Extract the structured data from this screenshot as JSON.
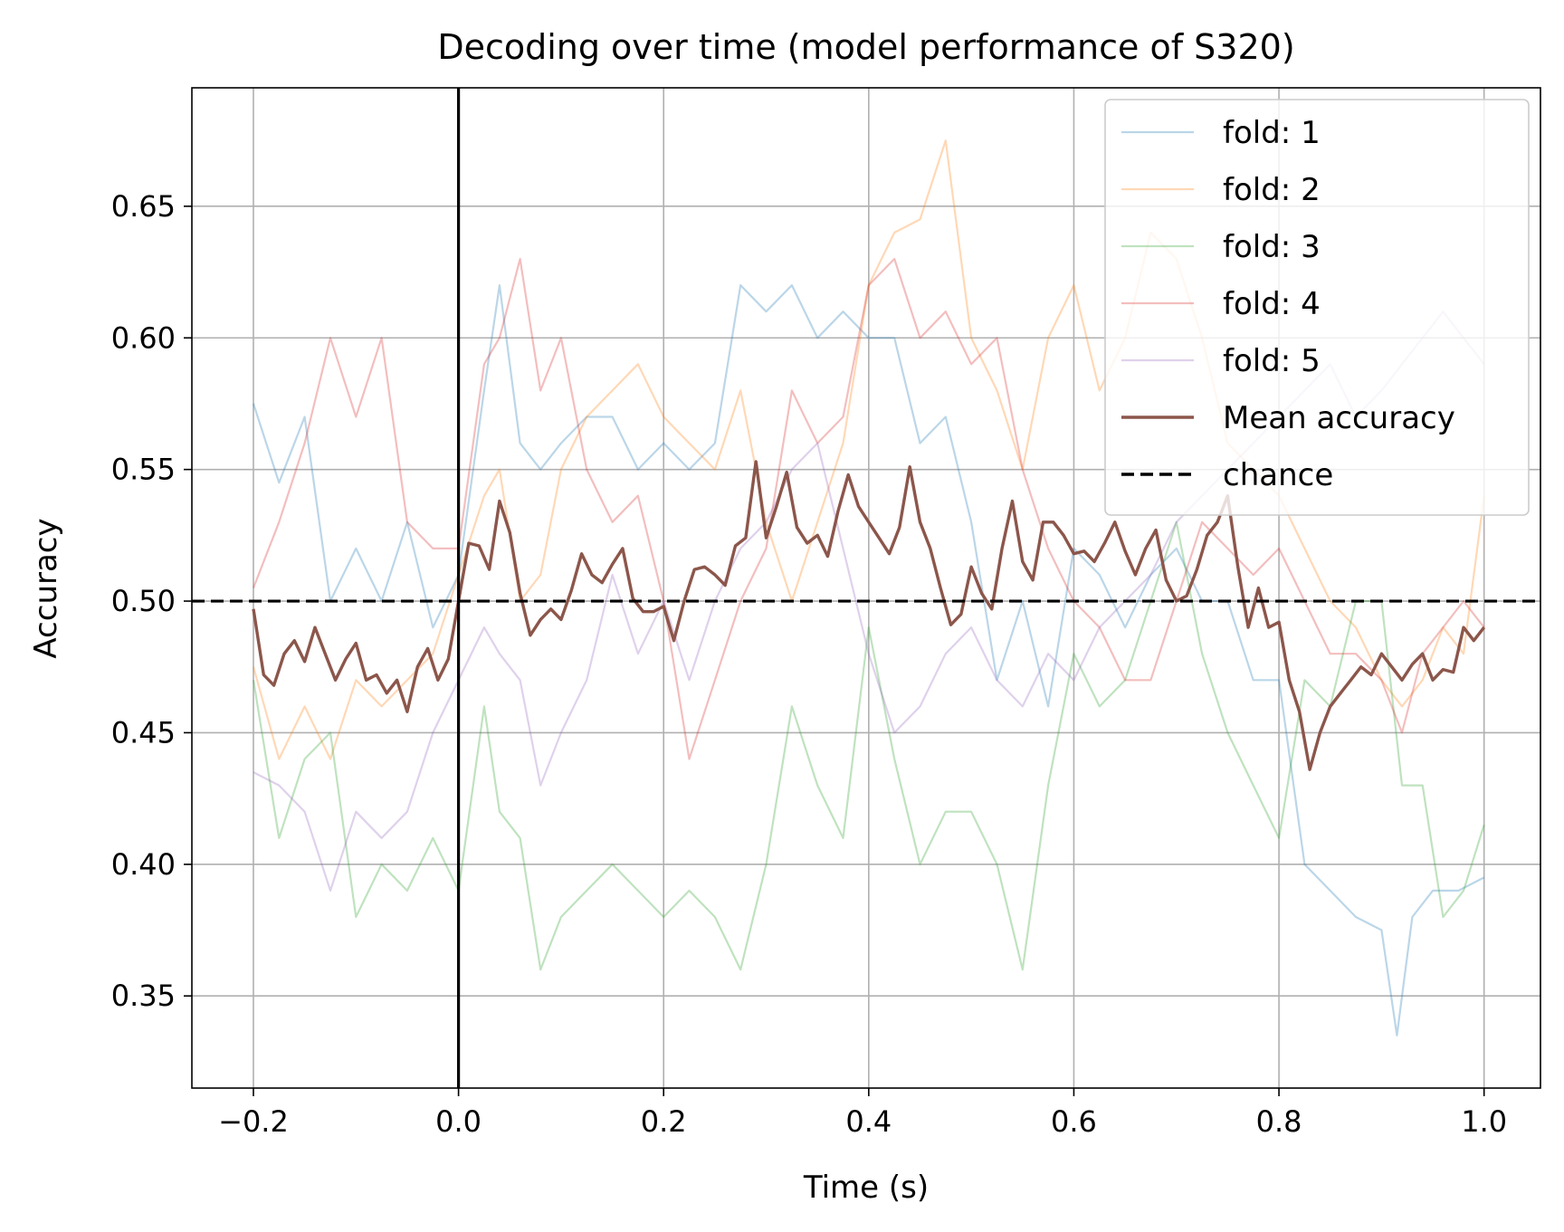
{
  "chart_data": {
    "type": "line",
    "title": "Decoding over time (model performance of S320)",
    "xlabel": "Time (s)",
    "ylabel": "Accuracy",
    "xlim": [
      -0.26,
      1.055
    ],
    "ylim": [
      0.315,
      0.695
    ],
    "xticks": [
      -0.2,
      0.0,
      0.2,
      0.4,
      0.6,
      0.8,
      1.0
    ],
    "xtick_labels": [
      "−0.2",
      "0.0",
      "0.2",
      "0.4",
      "0.6",
      "0.8",
      "1.0"
    ],
    "yticks": [
      0.35,
      0.4,
      0.45,
      0.5,
      0.55,
      0.6,
      0.65
    ],
    "ytick_labels": [
      "0.35",
      "0.40",
      "0.45",
      "0.50",
      "0.55",
      "0.60",
      "0.65"
    ],
    "grid": true,
    "legend_position": "top-right",
    "onset_line_x": 0.0,
    "chance_level": 0.5,
    "chance_label": "chance",
    "series": [
      {
        "name": "fold: 1",
        "color": "#1f77b4",
        "alpha": 0.3,
        "x": [
          -0.2,
          -0.175,
          -0.15,
          -0.125,
          -0.1,
          -0.075,
          -0.05,
          -0.025,
          0.0,
          0.025,
          0.04,
          0.06,
          0.08,
          0.1,
          0.125,
          0.15,
          0.175,
          0.2,
          0.225,
          0.25,
          0.275,
          0.3,
          0.325,
          0.35,
          0.375,
          0.4,
          0.425,
          0.45,
          0.475,
          0.5,
          0.525,
          0.55,
          0.575,
          0.6,
          0.625,
          0.65,
          0.675,
          0.7,
          0.725,
          0.75,
          0.775,
          0.8,
          0.825,
          0.85,
          0.875,
          0.9,
          0.915,
          0.93,
          0.95,
          0.975,
          1.0
        ],
        "y": [
          0.575,
          0.545,
          0.57,
          0.5,
          0.52,
          0.5,
          0.53,
          0.49,
          0.51,
          0.58,
          0.62,
          0.56,
          0.55,
          0.56,
          0.57,
          0.57,
          0.55,
          0.56,
          0.55,
          0.56,
          0.62,
          0.61,
          0.62,
          0.6,
          0.61,
          0.6,
          0.6,
          0.56,
          0.57,
          0.53,
          0.47,
          0.5,
          0.46,
          0.52,
          0.51,
          0.49,
          0.51,
          0.52,
          0.5,
          0.5,
          0.47,
          0.47,
          0.4,
          0.39,
          0.38,
          0.375,
          0.335,
          0.38,
          0.39,
          0.39,
          0.395
        ]
      },
      {
        "name": "fold: 2",
        "color": "#ff7f0e",
        "alpha": 0.3,
        "x": [
          -0.2,
          -0.175,
          -0.15,
          -0.125,
          -0.1,
          -0.075,
          -0.05,
          -0.025,
          0.0,
          0.025,
          0.04,
          0.06,
          0.08,
          0.1,
          0.125,
          0.15,
          0.175,
          0.2,
          0.225,
          0.25,
          0.275,
          0.3,
          0.325,
          0.35,
          0.375,
          0.4,
          0.425,
          0.45,
          0.475,
          0.5,
          0.525,
          0.55,
          0.575,
          0.6,
          0.625,
          0.65,
          0.675,
          0.7,
          0.725,
          0.75,
          0.775,
          0.8,
          0.825,
          0.85,
          0.875,
          0.9,
          0.92,
          0.94,
          0.96,
          0.98,
          1.0
        ],
        "y": [
          0.475,
          0.44,
          0.46,
          0.44,
          0.47,
          0.46,
          0.47,
          0.48,
          0.51,
          0.54,
          0.55,
          0.5,
          0.51,
          0.55,
          0.57,
          0.58,
          0.59,
          0.57,
          0.56,
          0.55,
          0.58,
          0.53,
          0.5,
          0.53,
          0.56,
          0.62,
          0.64,
          0.645,
          0.675,
          0.6,
          0.58,
          0.55,
          0.6,
          0.62,
          0.58,
          0.6,
          0.64,
          0.63,
          0.6,
          0.56,
          0.55,
          0.54,
          0.52,
          0.5,
          0.49,
          0.47,
          0.46,
          0.47,
          0.49,
          0.48,
          0.54
        ]
      },
      {
        "name": "fold: 3",
        "color": "#2ca02c",
        "alpha": 0.3,
        "x": [
          -0.2,
          -0.175,
          -0.15,
          -0.125,
          -0.1,
          -0.075,
          -0.05,
          -0.025,
          0.0,
          0.025,
          0.04,
          0.06,
          0.08,
          0.1,
          0.125,
          0.15,
          0.175,
          0.2,
          0.225,
          0.25,
          0.275,
          0.3,
          0.325,
          0.35,
          0.375,
          0.4,
          0.425,
          0.45,
          0.475,
          0.5,
          0.525,
          0.55,
          0.575,
          0.6,
          0.625,
          0.65,
          0.675,
          0.7,
          0.725,
          0.75,
          0.775,
          0.8,
          0.825,
          0.85,
          0.875,
          0.9,
          0.92,
          0.94,
          0.96,
          0.98,
          1.0
        ],
        "y": [
          0.47,
          0.41,
          0.44,
          0.45,
          0.38,
          0.4,
          0.39,
          0.41,
          0.39,
          0.46,
          0.42,
          0.41,
          0.36,
          0.38,
          0.39,
          0.4,
          0.39,
          0.38,
          0.39,
          0.38,
          0.36,
          0.4,
          0.46,
          0.43,
          0.41,
          0.49,
          0.44,
          0.4,
          0.42,
          0.42,
          0.4,
          0.36,
          0.43,
          0.48,
          0.46,
          0.47,
          0.5,
          0.53,
          0.48,
          0.45,
          0.43,
          0.41,
          0.47,
          0.46,
          0.5,
          0.5,
          0.43,
          0.43,
          0.38,
          0.39,
          0.415
        ]
      },
      {
        "name": "fold: 4",
        "color": "#d62728",
        "alpha": 0.3,
        "x": [
          -0.2,
          -0.175,
          -0.15,
          -0.125,
          -0.1,
          -0.075,
          -0.05,
          -0.025,
          0.0,
          0.025,
          0.04,
          0.06,
          0.08,
          0.1,
          0.125,
          0.15,
          0.175,
          0.2,
          0.225,
          0.25,
          0.275,
          0.3,
          0.325,
          0.35,
          0.375,
          0.4,
          0.425,
          0.45,
          0.475,
          0.5,
          0.525,
          0.55,
          0.575,
          0.6,
          0.625,
          0.65,
          0.675,
          0.7,
          0.725,
          0.75,
          0.775,
          0.8,
          0.825,
          0.85,
          0.875,
          0.9,
          0.92,
          0.94,
          0.96,
          0.98,
          1.0
        ],
        "y": [
          0.505,
          0.53,
          0.56,
          0.6,
          0.57,
          0.6,
          0.53,
          0.52,
          0.52,
          0.59,
          0.6,
          0.63,
          0.58,
          0.6,
          0.55,
          0.53,
          0.54,
          0.5,
          0.44,
          0.47,
          0.5,
          0.52,
          0.58,
          0.56,
          0.57,
          0.62,
          0.63,
          0.6,
          0.61,
          0.59,
          0.6,
          0.55,
          0.52,
          0.5,
          0.49,
          0.47,
          0.47,
          0.5,
          0.53,
          0.52,
          0.51,
          0.52,
          0.5,
          0.48,
          0.48,
          0.47,
          0.45,
          0.48,
          0.49,
          0.5,
          0.49
        ]
      },
      {
        "name": "fold: 5",
        "color": "#9467bd",
        "alpha": 0.3,
        "x": [
          -0.2,
          -0.175,
          -0.15,
          -0.125,
          -0.1,
          -0.075,
          -0.05,
          -0.025,
          0.0,
          0.025,
          0.04,
          0.06,
          0.08,
          0.1,
          0.125,
          0.15,
          0.175,
          0.2,
          0.225,
          0.25,
          0.275,
          0.3,
          0.325,
          0.35,
          0.375,
          0.4,
          0.425,
          0.45,
          0.475,
          0.5,
          0.525,
          0.55,
          0.575,
          0.6,
          0.625,
          0.65,
          0.675,
          0.7,
          0.725,
          0.75,
          0.775,
          0.8,
          0.825,
          0.85,
          0.875,
          0.9,
          0.92,
          0.94,
          0.96,
          0.98,
          1.0
        ],
        "y": [
          0.435,
          0.43,
          0.42,
          0.39,
          0.42,
          0.41,
          0.42,
          0.45,
          0.47,
          0.49,
          0.48,
          0.47,
          0.43,
          0.45,
          0.47,
          0.51,
          0.48,
          0.5,
          0.47,
          0.5,
          0.52,
          0.53,
          0.55,
          0.56,
          0.52,
          0.48,
          0.45,
          0.46,
          0.48,
          0.49,
          0.47,
          0.46,
          0.48,
          0.47,
          0.49,
          0.5,
          0.51,
          0.53,
          0.54,
          0.55,
          0.56,
          0.57,
          0.58,
          0.59,
          0.57,
          0.58,
          0.59,
          0.6,
          0.61,
          0.6,
          0.59
        ]
      },
      {
        "name": "Mean accuracy",
        "color": "#8c564b",
        "alpha": 1.0,
        "x": [
          -0.2,
          -0.19,
          -0.18,
          -0.17,
          -0.16,
          -0.15,
          -0.14,
          -0.13,
          -0.12,
          -0.11,
          -0.1,
          -0.09,
          -0.08,
          -0.07,
          -0.06,
          -0.05,
          -0.04,
          -0.03,
          -0.02,
          -0.01,
          0.0,
          0.01,
          0.02,
          0.03,
          0.04,
          0.05,
          0.06,
          0.07,
          0.08,
          0.09,
          0.1,
          0.11,
          0.12,
          0.13,
          0.14,
          0.15,
          0.16,
          0.17,
          0.18,
          0.19,
          0.2,
          0.21,
          0.22,
          0.23,
          0.24,
          0.25,
          0.26,
          0.27,
          0.28,
          0.29,
          0.3,
          0.31,
          0.32,
          0.33,
          0.34,
          0.35,
          0.36,
          0.37,
          0.38,
          0.39,
          0.4,
          0.41,
          0.42,
          0.43,
          0.44,
          0.45,
          0.46,
          0.47,
          0.48,
          0.49,
          0.5,
          0.51,
          0.52,
          0.53,
          0.54,
          0.55,
          0.56,
          0.57,
          0.58,
          0.59,
          0.6,
          0.61,
          0.62,
          0.63,
          0.64,
          0.65,
          0.66,
          0.67,
          0.68,
          0.69,
          0.7,
          0.71,
          0.72,
          0.73,
          0.74,
          0.75,
          0.76,
          0.77,
          0.78,
          0.79,
          0.8,
          0.81,
          0.82,
          0.83,
          0.84,
          0.85,
          0.86,
          0.87,
          0.88,
          0.89,
          0.9,
          0.91,
          0.92,
          0.93,
          0.94,
          0.95,
          0.96,
          0.97,
          0.98,
          0.99,
          1.0
        ],
        "y": [
          0.497,
          0.472,
          0.468,
          0.48,
          0.485,
          0.477,
          0.49,
          0.48,
          0.47,
          0.478,
          0.484,
          0.47,
          0.472,
          0.465,
          0.47,
          0.458,
          0.475,
          0.482,
          0.47,
          0.478,
          0.5,
          0.522,
          0.521,
          0.512,
          0.538,
          0.526,
          0.503,
          0.487,
          0.493,
          0.497,
          0.493,
          0.504,
          0.518,
          0.51,
          0.507,
          0.514,
          0.52,
          0.501,
          0.496,
          0.496,
          0.498,
          0.485,
          0.5,
          0.512,
          0.513,
          0.51,
          0.506,
          0.521,
          0.524,
          0.553,
          0.524,
          0.536,
          0.549,
          0.528,
          0.522,
          0.525,
          0.517,
          0.534,
          0.548,
          0.536,
          0.53,
          0.524,
          0.518,
          0.528,
          0.551,
          0.53,
          0.52,
          0.505,
          0.491,
          0.495,
          0.513,
          0.503,
          0.497,
          0.52,
          0.538,
          0.515,
          0.508,
          0.53,
          0.53,
          0.525,
          0.518,
          0.519,
          0.515,
          0.522,
          0.53,
          0.519,
          0.51,
          0.52,
          0.527,
          0.508,
          0.5,
          0.502,
          0.512,
          0.525,
          0.53,
          0.54,
          0.513,
          0.49,
          0.505,
          0.49,
          0.492,
          0.47,
          0.458,
          0.436,
          0.45,
          0.46,
          0.465,
          0.47,
          0.475,
          0.472,
          0.48,
          0.475,
          0.47,
          0.476,
          0.48,
          0.47,
          0.474,
          0.473,
          0.49,
          0.485,
          0.49
        ]
      }
    ]
  }
}
